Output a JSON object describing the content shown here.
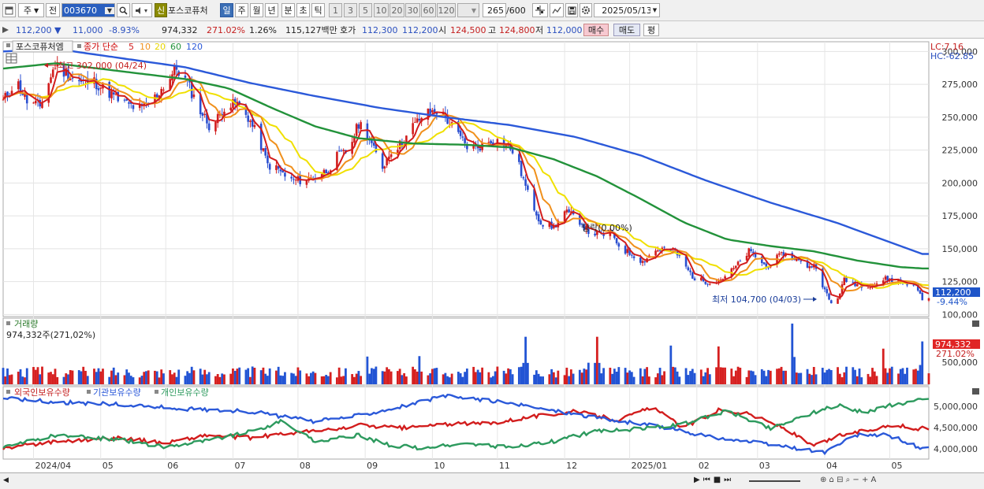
{
  "toolbar": {
    "market": "주",
    "prev": "전",
    "stock_code": "003670",
    "new_badge": "신",
    "stock_name": "포스코퓨처",
    "periods": [
      "일",
      "주",
      "월",
      "년",
      "분",
      "초",
      "틱"
    ],
    "active_period": "일",
    "intervals": [
      "1",
      "3",
      "5",
      "10",
      "20",
      "30",
      "60",
      "120"
    ],
    "count": "265",
    "count_total": "/600",
    "date": "2025/05/13"
  },
  "info": {
    "price": "112,200",
    "change": "11,000",
    "change_pct": "-8.93%",
    "volume": "974,332",
    "volume_ratio": "271.02%",
    "turnover": "1.26%",
    "amount": "115,127백만",
    "bid_label": "호가",
    "bid": "112,300",
    "ask": "112,200",
    "open_label": "시",
    "open": "124,500",
    "high_label": "고",
    "high": "124,800",
    "low_label": "저",
    "low": "112,000",
    "buy": "매수",
    "sell": "매도",
    "eval": "평"
  },
  "chart_data": [
    {
      "type": "line",
      "title": "포스코퓨처엠",
      "legend": [
        "종가 단순",
        "5",
        "10",
        "20",
        "60",
        "120"
      ],
      "colors": {
        "5": "#d21d1d",
        "10": "#f0901c",
        "20": "#f0e000",
        "60": "#22923a",
        "120": "#2b59d9"
      },
      "y_ticks": [
        300000,
        275000,
        250000,
        225000,
        200000,
        175000,
        150000,
        125000,
        100000
      ],
      "y_tick_labels": [
        "300,000",
        "275,000",
        "250,000",
        "225,000",
        "200,000",
        "175,000",
        "150,000",
        "125,000",
        "100,000"
      ],
      "ylim": [
        99000,
        305000
      ],
      "x_labels": [
        "2024/04",
        "05",
        "06",
        "07",
        "08",
        "09",
        "10",
        "11",
        "12",
        "2025/01",
        "02",
        "03",
        "04",
        "05"
      ],
      "x_label_days": [
        0,
        31,
        61,
        92,
        122,
        153,
        184,
        214,
        245,
        275,
        306,
        334,
        365,
        395
      ],
      "x_range_days": [
        -14,
        413
      ],
      "close_knots": [
        [
          -14,
          262000
        ],
        [
          -8,
          278000
        ],
        [
          -3,
          262000
        ],
        [
          3,
          258000
        ],
        [
          10,
          290000
        ],
        [
          16,
          282000
        ],
        [
          22,
          276000
        ],
        [
          28,
          277000
        ],
        [
          34,
          270000
        ],
        [
          40,
          262000
        ],
        [
          46,
          258000
        ],
        [
          50,
          256000
        ],
        [
          56,
          265000
        ],
        [
          62,
          278000
        ],
        [
          66,
          287000
        ],
        [
          71,
          276000
        ],
        [
          76,
          258000
        ],
        [
          82,
          241000
        ],
        [
          88,
          258000
        ],
        [
          94,
          260000
        ],
        [
          99,
          250000
        ],
        [
          104,
          233000
        ],
        [
          108,
          214000
        ],
        [
          113,
          210000
        ],
        [
          118,
          202000
        ],
        [
          125,
          202000
        ],
        [
          130,
          205000
        ],
        [
          136,
          210000
        ],
        [
          140,
          220000
        ],
        [
          145,
          224000
        ],
        [
          150,
          245000
        ],
        [
          153,
          242000
        ],
        [
          157,
          225000
        ],
        [
          161,
          212000
        ],
        [
          165,
          225000
        ],
        [
          170,
          230000
        ],
        [
          175,
          243000
        ],
        [
          180,
          252000
        ],
        [
          186,
          255000
        ],
        [
          190,
          250000
        ],
        [
          196,
          236000
        ],
        [
          201,
          226000
        ],
        [
          206,
          228000
        ],
        [
          211,
          232000
        ],
        [
          216,
          232000
        ],
        [
          222,
          223000
        ],
        [
          228,
          192000
        ],
        [
          234,
          170000
        ],
        [
          240,
          166000
        ],
        [
          245,
          178000
        ],
        [
          251,
          173000
        ],
        [
          256,
          163000
        ],
        [
          262,
          160000
        ],
        [
          266,
          163000
        ],
        [
          271,
          150000
        ],
        [
          277,
          145000
        ],
        [
          281,
          140000
        ],
        [
          286,
          148000
        ],
        [
          290,
          150000
        ],
        [
          296,
          148000
        ],
        [
          300,
          138000
        ],
        [
          305,
          127000
        ],
        [
          311,
          125000
        ],
        [
          316,
          126000
        ],
        [
          320,
          130000
        ],
        [
          325,
          138000
        ],
        [
          330,
          148000
        ],
        [
          334,
          143000
        ],
        [
          338,
          136000
        ],
        [
          342,
          142000
        ],
        [
          346,
          146000
        ],
        [
          351,
          143000
        ],
        [
          356,
          137000
        ],
        [
          361,
          137000
        ],
        [
          365,
          118000
        ],
        [
          368,
          108000
        ],
        [
          371,
          113000
        ],
        [
          374,
          126000
        ],
        [
          378,
          124000
        ],
        [
          383,
          122000
        ],
        [
          388,
          123000
        ],
        [
          393,
          127000
        ],
        [
          398,
          126000
        ],
        [
          403,
          123000
        ],
        [
          406,
          124000
        ],
        [
          410,
          112000
        ]
      ],
      "ma120_knots": [
        [
          -14,
          300000
        ],
        [
          10,
          302000
        ],
        [
          40,
          295000
        ],
        [
          70,
          288000
        ],
        [
          100,
          276000
        ],
        [
          130,
          266000
        ],
        [
          160,
          257000
        ],
        [
          190,
          250000
        ],
        [
          220,
          244000
        ],
        [
          250,
          235000
        ],
        [
          280,
          221000
        ],
        [
          310,
          202000
        ],
        [
          340,
          185000
        ],
        [
          370,
          170000
        ],
        [
          390,
          158000
        ],
        [
          410,
          146000
        ]
      ],
      "ma60_knots": [
        [
          -14,
          287000
        ],
        [
          10,
          291000
        ],
        [
          40,
          285000
        ],
        [
          70,
          279000
        ],
        [
          90,
          272000
        ],
        [
          110,
          257000
        ],
        [
          130,
          243000
        ],
        [
          150,
          234000
        ],
        [
          175,
          230000
        ],
        [
          200,
          229000
        ],
        [
          220,
          227000
        ],
        [
          240,
          218000
        ],
        [
          260,
          205000
        ],
        [
          280,
          188000
        ],
        [
          300,
          170000
        ],
        [
          320,
          157000
        ],
        [
          340,
          152000
        ],
        [
          360,
          148000
        ],
        [
          380,
          141000
        ],
        [
          400,
          136000
        ],
        [
          410,
          135000
        ]
      ],
      "annotations": {
        "max": "최고 302,000 (04/24)",
        "min": "최저 104,700 (04/03)",
        "drop": "당락(0.00%)"
      },
      "lc": "LC:7.16",
      "hc": "HC:-62.85",
      "current_price": "112,200",
      "current_pct": "-9.44%"
    },
    {
      "type": "bar",
      "title": "거래량",
      "info": "974,332주(271,02%)",
      "y_tick_labels": [
        "500,000"
      ],
      "current": "974,332",
      "current_pct": "271.02%",
      "peaks": [
        [
          153,
          1400000
        ],
        [
          350,
          1380000
        ],
        [
          227,
          1080000
        ],
        [
          260,
          1080000
        ],
        [
          410,
          974332
        ],
        [
          294,
          880000
        ],
        [
          316,
          860000
        ],
        [
          392,
          810000
        ],
        [
          178,
          640000
        ],
        [
          110,
          560000
        ],
        [
          195,
          520000
        ],
        [
          384,
          520000
        ],
        [
          256,
          490000
        ],
        [
          90,
          480000
        ]
      ],
      "base": 280000,
      "colors": {
        "up": "#d62020",
        "down": "#2254d4"
      }
    },
    {
      "type": "line",
      "series": [
        {
          "name": "외국인보유수량",
          "color": "#d21d1d",
          "knots": [
            [
              -14,
              4020000
            ],
            [
              10,
              4180000
            ],
            [
              40,
              4260000
            ],
            [
              60,
              4140000
            ],
            [
              80,
              4320000
            ],
            [
              100,
              4260000
            ],
            [
              120,
              4380000
            ],
            [
              140,
              4460000
            ],
            [
              150,
              4560000
            ],
            [
              170,
              4490000
            ],
            [
              190,
              4580000
            ],
            [
              210,
              4600000
            ],
            [
              230,
              4760000
            ],
            [
              250,
              4880000
            ],
            [
              270,
              4680000
            ],
            [
              285,
              4980000
            ],
            [
              300,
              4500000
            ],
            [
              316,
              4920000
            ],
            [
              330,
              4820000
            ],
            [
              345,
              4520000
            ],
            [
              360,
              4060000
            ],
            [
              372,
              4320000
            ],
            [
              385,
              4440000
            ],
            [
              398,
              4580000
            ],
            [
              405,
              4460000
            ],
            [
              410,
              4480000
            ]
          ]
        },
        {
          "name": "기관보유수량",
          "color": "#2b59d9",
          "knots": [
            [
              -14,
              5200000
            ],
            [
              10,
              5100000
            ],
            [
              40,
              5040000
            ],
            [
              70,
              4940000
            ],
            [
              100,
              4880000
            ],
            [
              130,
              4640000
            ],
            [
              150,
              4790000
            ],
            [
              170,
              5000000
            ],
            [
              190,
              5240000
            ],
            [
              210,
              5140000
            ],
            [
              230,
              4980000
            ],
            [
              250,
              4820000
            ],
            [
              270,
              4650000
            ],
            [
              290,
              4520000
            ],
            [
              310,
              4300000
            ],
            [
              325,
              4200000
            ],
            [
              340,
              4100000
            ],
            [
              355,
              3990000
            ],
            [
              365,
              3920000
            ],
            [
              372,
              4120000
            ],
            [
              380,
              4320000
            ],
            [
              392,
              4340000
            ],
            [
              400,
              4220000
            ],
            [
              410,
              4000000
            ]
          ]
        },
        {
          "name": "개인보유수량",
          "color": "#2d9a5e",
          "knots": [
            [
              -14,
              4030000
            ],
            [
              10,
              4320000
            ],
            [
              40,
              4220000
            ],
            [
              60,
              4050000
            ],
            [
              80,
              4200000
            ],
            [
              100,
              4400000
            ],
            [
              115,
              4650000
            ],
            [
              130,
              4170000
            ],
            [
              150,
              4320000
            ],
            [
              165,
              4080000
            ],
            [
              180,
              4020000
            ],
            [
              200,
              4120000
            ],
            [
              220,
              4040000
            ],
            [
              240,
              4180000
            ],
            [
              260,
              4420000
            ],
            [
              280,
              4470000
            ],
            [
              300,
              4580000
            ],
            [
              320,
              4900000
            ],
            [
              340,
              4480000
            ],
            [
              360,
              4860000
            ],
            [
              372,
              5030000
            ],
            [
              383,
              4850000
            ],
            [
              395,
              5020000
            ],
            [
              405,
              5120000
            ],
            [
              410,
              5160000
            ]
          ]
        }
      ],
      "y_tick_labels": [
        "5,000,000",
        "4,500,000",
        "4,000,000"
      ],
      "ylim": [
        3800000,
        5350000
      ]
    }
  ]
}
